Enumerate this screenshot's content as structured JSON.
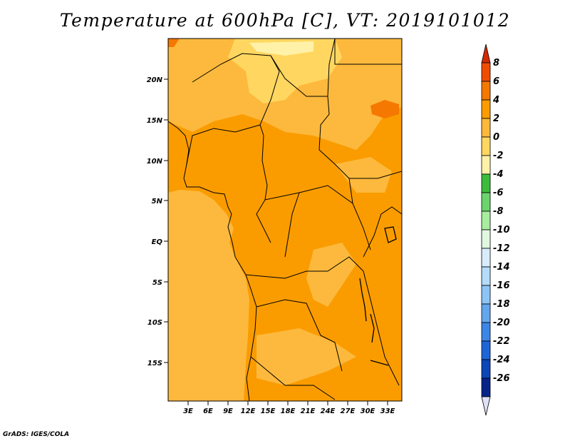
{
  "title": "Temperature at 600hPa [C], VT: 2019101012",
  "credit": "GrADS: IGES/COLA",
  "map": {
    "lat_labels": [
      "20N",
      "15N",
      "10N",
      "5N",
      "EQ",
      "5S",
      "10S",
      "15S"
    ],
    "lon_labels": [
      "3E",
      "6E",
      "9E",
      "12E",
      "15E",
      "18E",
      "21E",
      "24E",
      "27E",
      "30E",
      "33E"
    ]
  },
  "colorbar": {
    "labels": [
      "8",
      "6",
      "4",
      "2",
      "0",
      "-2",
      "-4",
      "-6",
      "-8",
      "-10",
      "-12",
      "-14",
      "-16",
      "-18",
      "-20",
      "-22",
      "-24",
      "-26"
    ],
    "colors": [
      "#d42a00",
      "#f04c00",
      "#f57800",
      "#fa9c00",
      "#fdb93d",
      "#ffd760",
      "#fff2a8",
      "#3cbc3c",
      "#6cd46c",
      "#a8eca0",
      "#e0f8e0",
      "#d8ecfc",
      "#b4dcfa",
      "#8cc4f6",
      "#64a6ee",
      "#3c86e6",
      "#1e66d8",
      "#0c46b8",
      "#06248a",
      "#e0e0f8"
    ]
  }
}
